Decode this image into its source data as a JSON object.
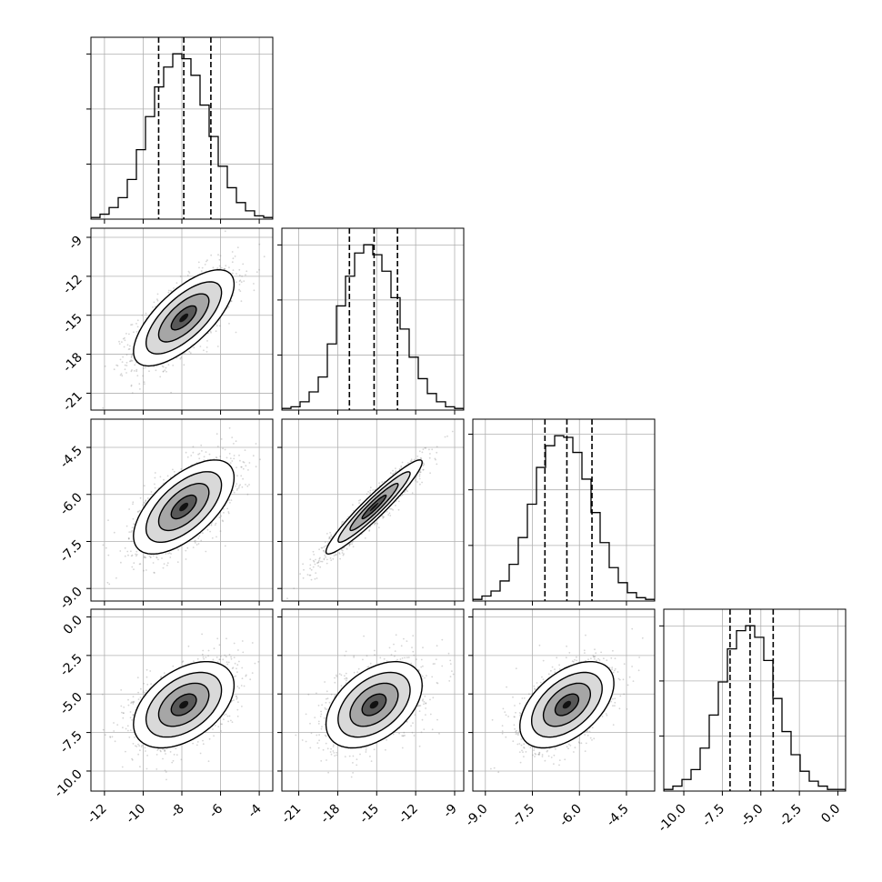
{
  "chart_data": {
    "type": "corner",
    "title": "",
    "n_params": 4,
    "grid": true,
    "ranges": [
      [
        -12.7,
        -3.3
      ],
      [
        -22.3,
        -8.3
      ],
      [
        -9.4,
        -3.6
      ],
      [
        -11.3,
        0.5
      ]
    ],
    "ticks": [
      [
        "-12",
        "-10",
        "-8",
        "-6",
        "-4"
      ],
      [
        "-21",
        "-18",
        "-15",
        "-12",
        "-9"
      ],
      [
        "-9.0",
        "-7.5",
        "-6.0",
        "-4.5"
      ],
      [
        "-10.0",
        "-7.5",
        "-5.0",
        "-2.5",
        "0.0"
      ]
    ],
    "tick_values": [
      [
        -12,
        -10,
        -8,
        -6,
        -4
      ],
      [
        -21,
        -18,
        -15,
        -12,
        -9
      ],
      [
        -9.0,
        -7.5,
        -6.0,
        -4.5
      ],
      [
        -10.0,
        -7.5,
        -5.0,
        -2.5,
        0.0
      ]
    ],
    "histograms": [
      {
        "bin_edges_range": [
          -12.7,
          -3.3
        ],
        "counts": [
          1,
          3,
          7,
          13,
          24,
          42,
          62,
          80,
          92,
          100,
          97,
          87,
          69,
          50,
          32,
          19,
          10,
          5,
          2,
          1
        ]
      },
      {
        "bin_edges_range": [
          -22.3,
          -8.3
        ],
        "counts": [
          1,
          2,
          5,
          11,
          20,
          40,
          63,
          81,
          95,
          100,
          94,
          84,
          68,
          49,
          32,
          19,
          10,
          5,
          2,
          1
        ]
      },
      {
        "bin_edges_range": [
          -9.4,
          -3.6
        ],
        "counts": [
          1,
          3,
          6,
          12,
          22,
          38,
          58,
          80,
          93,
          99,
          98,
          89,
          73,
          53,
          35,
          20,
          11,
          5,
          2,
          1
        ]
      },
      {
        "bin_edges_range": [
          -11.3,
          0.5
        ],
        "counts": [
          1,
          3,
          7,
          13,
          26,
          46,
          66,
          86,
          97,
          100,
          93,
          79,
          56,
          36,
          22,
          12,
          6,
          3,
          1,
          1
        ]
      }
    ],
    "quantile_lines": [
      [
        -9.2,
        -7.9,
        -6.5
      ],
      [
        -17.1,
        -15.2,
        -13.4
      ],
      [
        -7.1,
        -6.4,
        -5.6
      ],
      [
        -7.0,
        -5.7,
        -4.2
      ]
    ],
    "correlations": [
      [
        1.0,
        0.7,
        0.62,
        0.45
      ],
      [
        0.7,
        1.0,
        0.95,
        0.45
      ],
      [
        0.62,
        0.95,
        1.0,
        0.5
      ],
      [
        0.45,
        0.45,
        0.5,
        1.0
      ]
    ],
    "means": [
      -7.9,
      -15.2,
      -6.4,
      -5.7
    ],
    "sigmas": [
      1.3,
      1.85,
      0.75,
      1.4
    ],
    "contour_levels_sigma": [
      0.5,
      1.0,
      1.5,
      2.0
    ],
    "colors": {
      "line": "#000000",
      "grid": "#b0b0b0",
      "scatter": "#888888",
      "density": "#000000"
    }
  }
}
